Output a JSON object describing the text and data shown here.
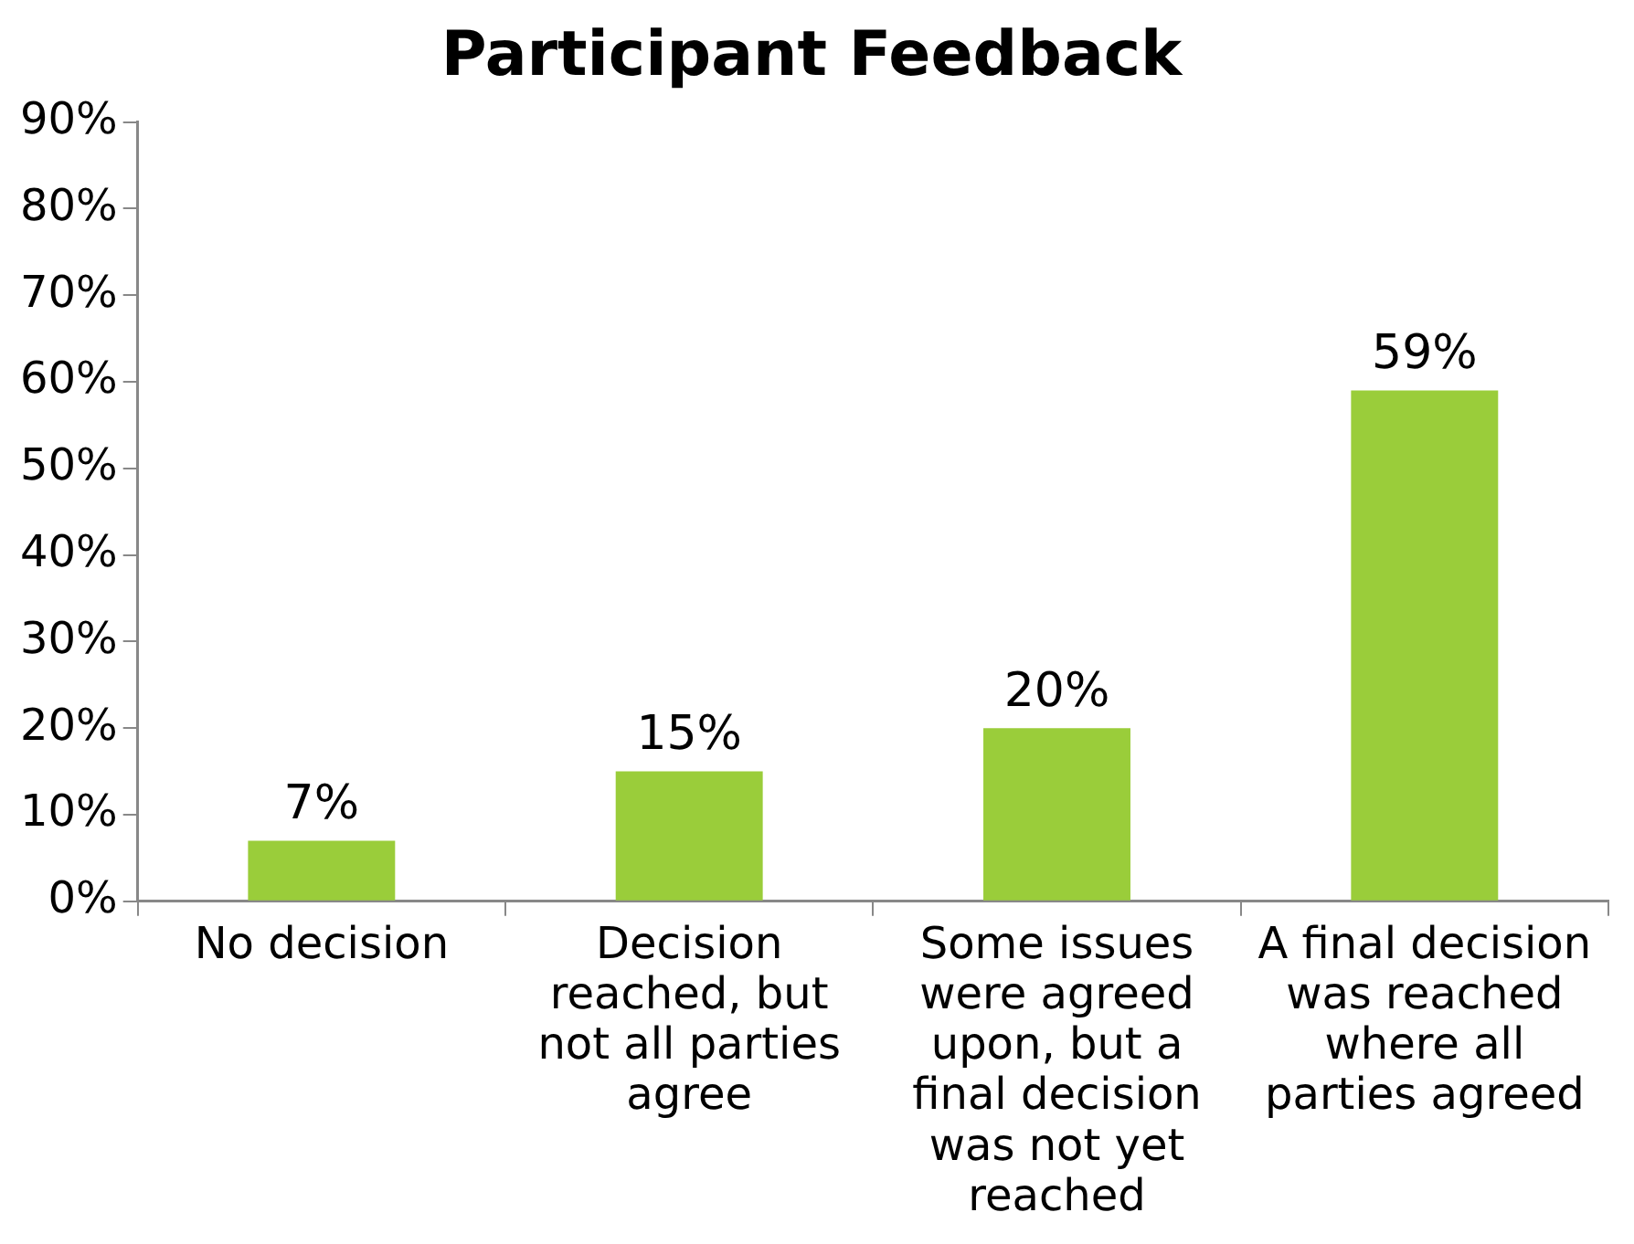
{
  "chart_data": {
    "type": "bar",
    "title": "Participant Feedback",
    "categories": [
      "No decision",
      "Decision reached, but not all parties agree",
      "Some issues were agreed upon, but a final decision was not yet reached",
      "A final decision was reached where all parties agreed"
    ],
    "values": [
      7,
      15,
      20,
      59
    ],
    "color": "#9acd3a",
    "value_labels": [
      "7%",
      "15%",
      "20%",
      "59%"
    ],
    "ylim": [
      0,
      90
    ],
    "yticks": [
      {
        "value": 0,
        "label": "0%"
      },
      {
        "value": 10,
        "label": "10%"
      },
      {
        "value": 20,
        "label": "20%"
      },
      {
        "value": 30,
        "label": "30%"
      },
      {
        "value": 40,
        "label": "40%"
      },
      {
        "value": 50,
        "label": "50%"
      },
      {
        "value": 60,
        "label": "60%"
      },
      {
        "value": 70,
        "label": "70%"
      },
      {
        "value": 80,
        "label": "80%"
      },
      {
        "value": 90,
        "label": "90%"
      }
    ],
    "grid": false
  }
}
